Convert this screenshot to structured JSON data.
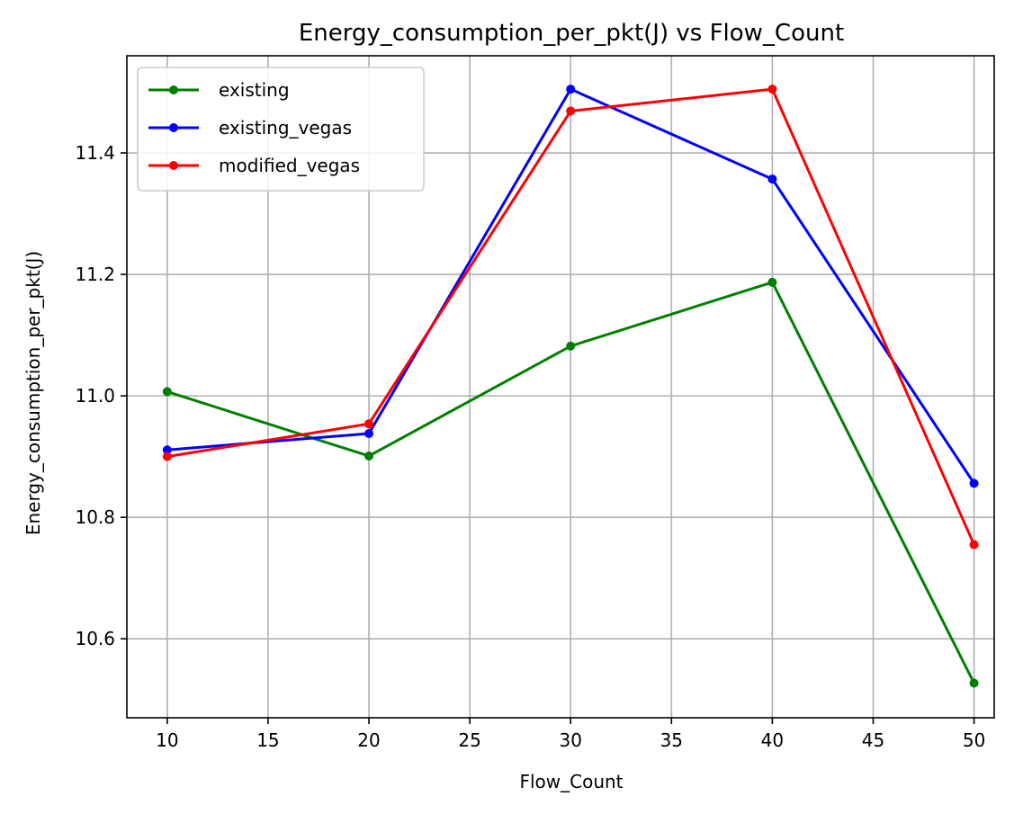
{
  "chart_data": {
    "type": "line",
    "title": "Energy_consumption_per_pkt(J) vs Flow_Count",
    "xlabel": "Flow_Count",
    "ylabel": "Energy_consumption_per_pkt(J)",
    "x": [
      10,
      20,
      30,
      40,
      50
    ],
    "xlim": [
      8,
      51
    ],
    "ylim": [
      10.47,
      11.56
    ],
    "xticks": [
      10,
      15,
      20,
      25,
      30,
      35,
      40,
      45,
      50
    ],
    "yticks": [
      10.6,
      10.8,
      11.0,
      11.2,
      11.4
    ],
    "ytick_labels": [
      "10.6",
      "10.8",
      "11.0",
      "11.2",
      "11.4"
    ],
    "grid": true,
    "legend_position": "upper-left",
    "series": [
      {
        "name": "existing",
        "color": "#008000",
        "values": [
          11.007,
          10.901,
          11.082,
          11.187,
          10.527
        ]
      },
      {
        "name": "existing_vegas",
        "color": "#0000ff",
        "values": [
          10.911,
          10.938,
          11.505,
          11.357,
          10.856
        ]
      },
      {
        "name": "modified_vegas",
        "color": "#ff0000",
        "values": [
          10.9,
          10.954,
          11.469,
          11.505,
          10.755
        ]
      }
    ]
  }
}
